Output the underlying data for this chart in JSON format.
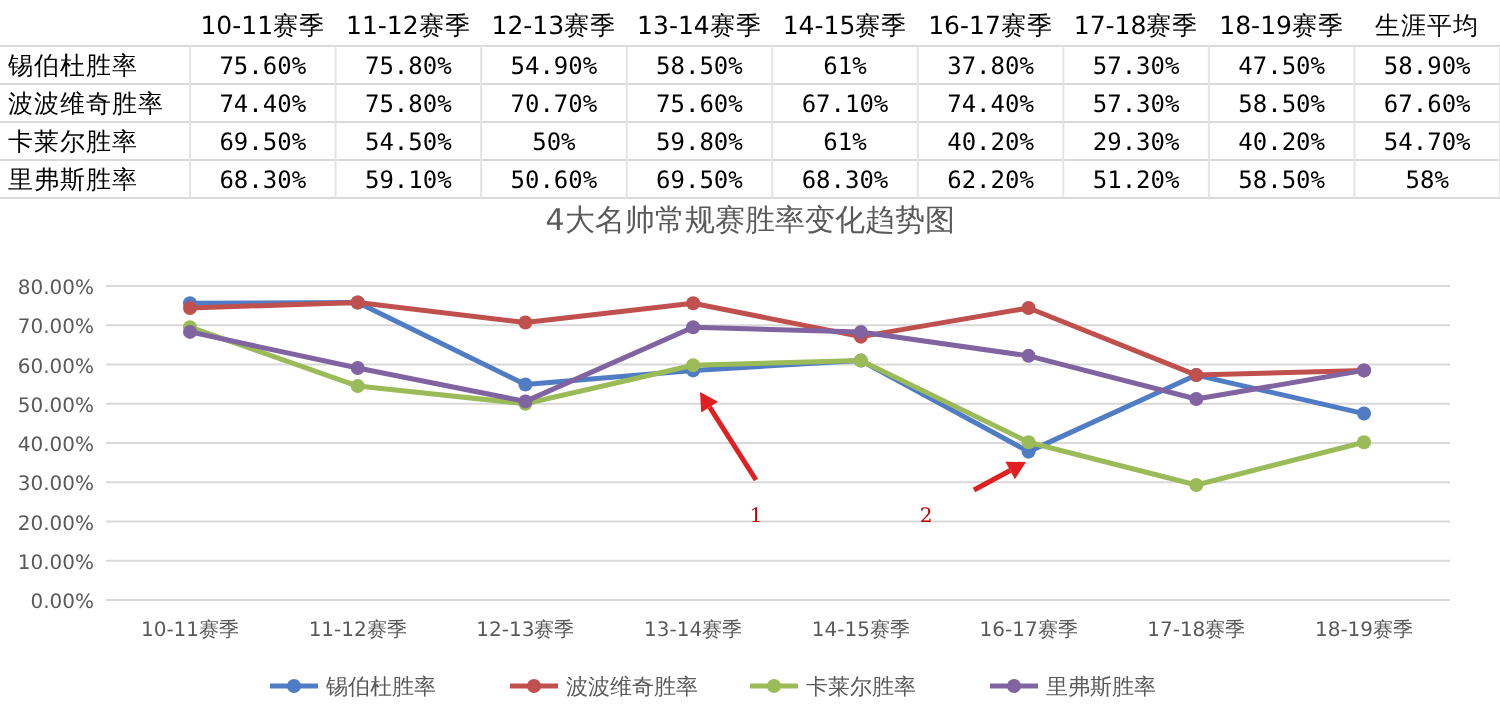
{
  "chart_data": {
    "type": "line",
    "title": "4大名帅常规赛胜率变化趋势图",
    "categories": [
      "10-11赛季",
      "11-12赛季",
      "12-13赛季",
      "13-14赛季",
      "14-15赛季",
      "16-17赛季",
      "17-18赛季",
      "18-19赛季"
    ],
    "series": [
      {
        "name": "锡伯杜胜率",
        "color": "#4f7cc4",
        "values": [
          75.6,
          75.8,
          54.9,
          58.5,
          61,
          37.8,
          57.3,
          47.5
        ],
        "value_labels": [
          "75.60%",
          "75.80%",
          "54.90%",
          "58.50%",
          "61%",
          "37.80%",
          "57.30%",
          "47.50%"
        ]
      },
      {
        "name": "波波维奇胜率",
        "color": "#c0504d",
        "values": [
          74.4,
          75.8,
          70.7,
          75.6,
          67.1,
          74.4,
          57.3,
          58.5
        ],
        "value_labels": [
          "74.40%",
          "75.80%",
          "70.70%",
          "75.60%",
          "67.10%",
          "74.40%",
          "57.30%",
          "58.50%"
        ]
      },
      {
        "name": "卡莱尔胜率",
        "color": "#9bbb59",
        "values": [
          69.5,
          54.5,
          50,
          59.8,
          61,
          40.2,
          29.3,
          40.2
        ],
        "value_labels": [
          "69.50%",
          "54.50%",
          "50%",
          "59.80%",
          "61%",
          "40.20%",
          "29.30%",
          "40.20%"
        ]
      },
      {
        "name": "里弗斯胜率",
        "color": "#8064a2",
        "values": [
          68.3,
          59.1,
          50.6,
          69.5,
          68.3,
          62.2,
          51.2,
          58.5
        ],
        "value_labels": [
          "68.30%",
          "59.10%",
          "50.60%",
          "69.50%",
          "68.30%",
          "62.20%",
          "51.20%",
          "58.50%"
        ]
      }
    ],
    "ylim": [
      0,
      80
    ],
    "yticks": [
      {
        "value": 0,
        "label": "0.00%"
      },
      {
        "value": 10,
        "label": "10.00%"
      },
      {
        "value": 20,
        "label": "20.00%"
      },
      {
        "value": 30,
        "label": "30.00%"
      },
      {
        "value": 40,
        "label": "40.00%"
      },
      {
        "value": 50,
        "label": "50.00%"
      },
      {
        "value": 60,
        "label": "60.00%"
      },
      {
        "value": 70,
        "label": "70.00%"
      },
      {
        "value": 80,
        "label": "80.00%"
      }
    ],
    "grid": "y",
    "legend": "bottom",
    "marker": "circle",
    "line_style": "solid",
    "annotations": [
      "生涯平均",
      "58.90%",
      "67.60%",
      "54.70%",
      "58%",
      "1",
      "2"
    ]
  }
}
